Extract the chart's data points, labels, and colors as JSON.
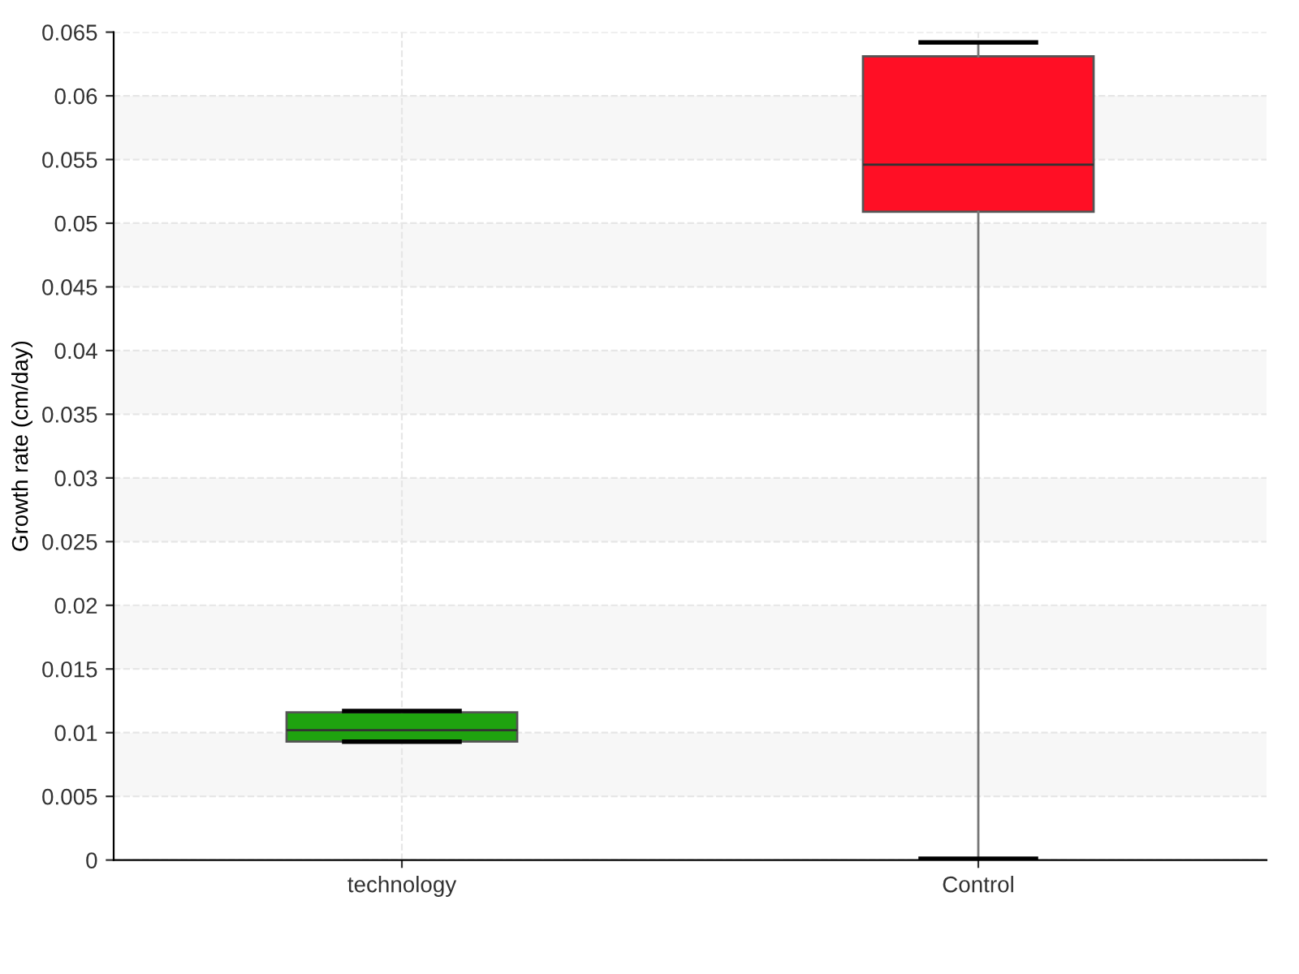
{
  "chart_data": {
    "type": "box",
    "ylabel": "Growth rate (cm/day)",
    "categories": [
      "technology",
      "Control"
    ],
    "colors": [
      "#1fa30f",
      "#ff0f25"
    ],
    "boxes": [
      {
        "low": 0.0093,
        "q1": 0.0093,
        "median": 0.0102,
        "q3": 0.0116,
        "high": 0.0117
      },
      {
        "low": 0.0001,
        "q1": 0.0509,
        "median": 0.0546,
        "q3": 0.0631,
        "high": 0.0642
      }
    ],
    "ylim": [
      0,
      0.065
    ],
    "yticks": [
      0,
      0.005,
      0.01,
      0.015,
      0.02,
      0.025,
      0.03,
      0.035,
      0.04,
      0.045,
      0.05,
      0.055,
      0.06,
      0.065
    ],
    "grid": true
  }
}
